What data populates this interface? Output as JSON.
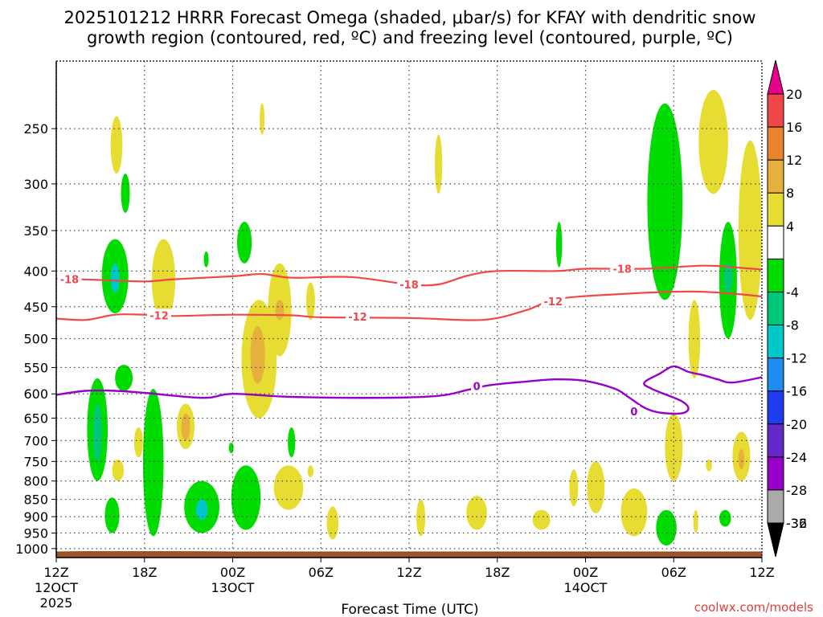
{
  "chart_data": {
    "type": "time-height cross-section",
    "title_line1": "2025101212 HRRR Forecast Omega (shaded, μbar/s) for KFAY with dendritic snow",
    "title_line2": "growth region (contoured, red, ºC) and freezing level (contoured, purple, ºC)",
    "xlabel": "Forecast Time (UTC)",
    "credit": "coolwx.com/models",
    "x_range_hours": [
      0,
      48
    ],
    "x_ticks": [
      {
        "h": 0,
        "label": "12Z",
        "sub1": "12OCT",
        "sub2": "2025"
      },
      {
        "h": 6,
        "label": "18Z",
        "sub1": "",
        "sub2": ""
      },
      {
        "h": 12,
        "label": "00Z",
        "sub1": "13OCT",
        "sub2": ""
      },
      {
        "h": 18,
        "label": "06Z",
        "sub1": "",
        "sub2": ""
      },
      {
        "h": 24,
        "label": "12Z",
        "sub1": "",
        "sub2": ""
      },
      {
        "h": 30,
        "label": "18Z",
        "sub1": "",
        "sub2": ""
      },
      {
        "h": 36,
        "label": "00Z",
        "sub1": "14OCT",
        "sub2": ""
      },
      {
        "h": 42,
        "label": "06Z",
        "sub1": "",
        "sub2": ""
      },
      {
        "h": 48,
        "label": "12Z",
        "sub1": "",
        "sub2": ""
      }
    ],
    "y_axis": "pressure (hPa), log scale",
    "y_range_hpa": [
      200,
      1030
    ],
    "y_ticks": [
      250,
      300,
      350,
      400,
      450,
      500,
      550,
      600,
      650,
      700,
      750,
      800,
      850,
      900,
      950,
      1000
    ],
    "surface_pressure_hpa": [
      [
        0,
        1011
      ],
      [
        2,
        1010
      ],
      [
        8,
        1010
      ],
      [
        12,
        1011
      ],
      [
        24,
        1011
      ],
      [
        36,
        1011
      ],
      [
        48,
        1011
      ]
    ],
    "dendritic_contours": [
      {
        "label": "-18",
        "color": "#f04848",
        "points": [
          [
            0,
            410
          ],
          [
            3,
            412
          ],
          [
            6,
            414
          ],
          [
            8,
            411
          ],
          [
            12,
            407
          ],
          [
            14,
            404
          ],
          [
            16,
            409
          ],
          [
            20,
            408
          ],
          [
            24,
            418
          ],
          [
            26,
            418
          ],
          [
            28,
            406
          ],
          [
            30,
            400
          ],
          [
            34,
            400
          ],
          [
            36,
            397
          ],
          [
            40,
            397
          ],
          [
            44,
            393
          ],
          [
            46,
            395
          ],
          [
            48,
            398
          ]
        ]
      },
      {
        "label": "-12",
        "color": "#f04848",
        "points": [
          [
            0,
            468
          ],
          [
            2,
            470
          ],
          [
            4,
            462
          ],
          [
            6,
            462
          ],
          [
            8,
            464
          ],
          [
            12,
            462
          ],
          [
            16,
            463
          ],
          [
            18,
            466
          ],
          [
            24,
            467
          ],
          [
            29,
            470
          ],
          [
            32,
            455
          ],
          [
            34,
            439
          ],
          [
            38,
            432
          ],
          [
            43,
            428
          ],
          [
            46,
            431
          ],
          [
            48,
            435
          ]
        ]
      }
    ],
    "freezing_level": {
      "label": "0",
      "color": "#9600c8",
      "points": [
        [
          0,
          602
        ],
        [
          2,
          594
        ],
        [
          4,
          594
        ],
        [
          6,
          598
        ],
        [
          10,
          608
        ],
        [
          12,
          600
        ],
        [
          16,
          606
        ],
        [
          22,
          608
        ],
        [
          26,
          604
        ],
        [
          28,
          592
        ],
        [
          29.5,
          583
        ],
        [
          32,
          576
        ],
        [
          34,
          572
        ],
        [
          36,
          575
        ],
        [
          38,
          590
        ],
        [
          39,
          608
        ],
        [
          40,
          628
        ],
        [
          41,
          638
        ],
        [
          42.5,
          640
        ],
        [
          43,
          630
        ],
        [
          42.5,
          614
        ],
        [
          40.5,
          590
        ],
        [
          40,
          578
        ],
        [
          41,
          562
        ],
        [
          42,
          548
        ],
        [
          43,
          558
        ],
        [
          44,
          564
        ],
        [
          45,
          572
        ],
        [
          46,
          578
        ],
        [
          48,
          568
        ]
      ]
    },
    "colorbar": [
      {
        "label": "20",
        "color": "#e8008c"
      },
      {
        "label": "16",
        "color": "#f04848"
      },
      {
        "label": "12",
        "color": "#e8842c"
      },
      {
        "label": "8",
        "color": "#e6b03c"
      },
      {
        "label": "4",
        "color": "#e6dc32"
      },
      {
        "label": "",
        "color": "#ffffff"
      },
      {
        "label": "-4",
        "color": "#00dc00"
      },
      {
        "label": "-8",
        "color": "#00c878"
      },
      {
        "label": "-12",
        "color": "#00c8c8"
      },
      {
        "label": "-16",
        "color": "#1e8cf0"
      },
      {
        "label": "-20",
        "color": "#1e3cf0"
      },
      {
        "label": "-24",
        "color": "#6428c8"
      },
      {
        "label": "-28",
        "color": "#9600c8"
      },
      {
        "label": "-32",
        "color": "#aaaaaa"
      },
      {
        "label": "-36",
        "color": "#000000"
      }
    ],
    "omega_regions": [
      {
        "sign": "ascent",
        "level": 1,
        "h_center": 4,
        "p_top": 360,
        "p_bottom": 460,
        "h_half": 0.9
      },
      {
        "sign": "ascent",
        "level": 3,
        "h_center": 4,
        "p_top": 390,
        "p_bottom": 430,
        "h_half": 0.3
      },
      {
        "sign": "ascent",
        "level": 1,
        "h_center": 4.7,
        "p_top": 290,
        "p_bottom": 330,
        "h_half": 0.3
      },
      {
        "sign": "ascent",
        "level": 1,
        "h_center": 12.8,
        "p_top": 340,
        "p_bottom": 390,
        "h_half": 0.5
      },
      {
        "sign": "ascent",
        "level": 1,
        "h_center": 10.2,
        "p_top": 375,
        "p_bottom": 395,
        "h_half": 0.1
      },
      {
        "sign": "ascent",
        "level": 1,
        "h_center": 2.8,
        "p_top": 570,
        "p_bottom": 800,
        "h_half": 0.7
      },
      {
        "sign": "ascent",
        "level": 2,
        "h_center": 2.8,
        "p_top": 620,
        "p_bottom": 750,
        "h_half": 0.3
      },
      {
        "sign": "ascent",
        "level": 1,
        "h_center": 4.6,
        "p_top": 545,
        "p_bottom": 595,
        "h_half": 0.6
      },
      {
        "sign": "ascent",
        "level": 1,
        "h_center": 3.8,
        "p_top": 845,
        "p_bottom": 950,
        "h_half": 0.5
      },
      {
        "sign": "ascent",
        "level": 1,
        "h_center": 6.6,
        "p_top": 590,
        "p_bottom": 960,
        "h_half": 0.7
      },
      {
        "sign": "ascent",
        "level": 1,
        "h_center": 9.9,
        "p_top": 800,
        "p_bottom": 950,
        "h_half": 1.2
      },
      {
        "sign": "ascent",
        "level": 3,
        "h_center": 9.9,
        "p_top": 850,
        "p_bottom": 910,
        "h_half": 0.4
      },
      {
        "sign": "ascent",
        "level": 1,
        "h_center": 12.9,
        "p_top": 760,
        "p_bottom": 940,
        "h_half": 1.0
      },
      {
        "sign": "ascent",
        "level": 1,
        "h_center": 16.0,
        "p_top": 670,
        "p_bottom": 740,
        "h_half": 0.25
      },
      {
        "sign": "ascent",
        "level": 1,
        "h_center": 11.9,
        "p_top": 705,
        "p_bottom": 730,
        "h_half": 0.15
      },
      {
        "sign": "ascent",
        "level": 1,
        "h_center": 34.2,
        "p_top": 340,
        "p_bottom": 395,
        "h_half": 0.2
      },
      {
        "sign": "ascent",
        "level": 1,
        "h_center": 41.4,
        "p_top": 230,
        "p_bottom": 440,
        "h_half": 1.2
      },
      {
        "sign": "ascent",
        "level": 1,
        "h_center": 45.7,
        "p_top": 340,
        "p_bottom": 500,
        "h_half": 0.6
      },
      {
        "sign": "ascent",
        "level": 2,
        "h_center": 45.7,
        "p_top": 390,
        "p_bottom": 430,
        "h_half": 0.3
      },
      {
        "sign": "ascent",
        "level": 1,
        "h_center": 41.5,
        "p_top": 880,
        "p_bottom": 990,
        "h_half": 0.7
      },
      {
        "sign": "ascent",
        "level": 1,
        "h_center": 45.5,
        "p_top": 880,
        "p_bottom": 930,
        "h_half": 0.4
      },
      {
        "sign": "descent",
        "level": 1,
        "h_center": 4.1,
        "p_top": 240,
        "p_bottom": 290,
        "h_half": 0.4
      },
      {
        "sign": "descent",
        "level": 1,
        "h_center": 14.0,
        "p_top": 230,
        "p_bottom": 255,
        "h_half": 0.15
      },
      {
        "sign": "descent",
        "level": 1,
        "h_center": 26.0,
        "p_top": 255,
        "p_bottom": 310,
        "h_half": 0.25
      },
      {
        "sign": "descent",
        "level": 1,
        "h_center": 7.3,
        "p_top": 360,
        "p_bottom": 470,
        "h_half": 0.8
      },
      {
        "sign": "descent",
        "level": 1,
        "h_center": 13.8,
        "p_top": 440,
        "p_bottom": 650,
        "h_half": 1.2
      },
      {
        "sign": "descent",
        "level": 2,
        "h_center": 13.7,
        "p_top": 480,
        "p_bottom": 580,
        "h_half": 0.5
      },
      {
        "sign": "descent",
        "level": 1,
        "h_center": 15.2,
        "p_top": 390,
        "p_bottom": 530,
        "h_half": 0.8
      },
      {
        "sign": "descent",
        "level": 2,
        "h_center": 15.2,
        "p_top": 440,
        "p_bottom": 470,
        "h_half": 0.3
      },
      {
        "sign": "descent",
        "level": 1,
        "h_center": 17.3,
        "p_top": 415,
        "p_bottom": 470,
        "h_half": 0.3
      },
      {
        "sign": "descent",
        "level": 1,
        "h_center": 8.8,
        "p_top": 620,
        "p_bottom": 720,
        "h_half": 0.6
      },
      {
        "sign": "descent",
        "level": 2,
        "h_center": 8.8,
        "p_top": 640,
        "p_bottom": 700,
        "h_half": 0.3
      },
      {
        "sign": "descent",
        "level": 1,
        "h_center": 5.6,
        "p_top": 670,
        "p_bottom": 740,
        "h_half": 0.3
      },
      {
        "sign": "descent",
        "level": 1,
        "h_center": 4.2,
        "p_top": 745,
        "p_bottom": 800,
        "h_half": 0.4
      },
      {
        "sign": "descent",
        "level": 1,
        "h_center": 15.8,
        "p_top": 760,
        "p_bottom": 880,
        "h_half": 1.0
      },
      {
        "sign": "descent",
        "level": 1,
        "h_center": 17.3,
        "p_top": 760,
        "p_bottom": 790,
        "h_half": 0.2
      },
      {
        "sign": "descent",
        "level": 1,
        "h_center": 18.8,
        "p_top": 870,
        "p_bottom": 970,
        "h_half": 0.4
      },
      {
        "sign": "descent",
        "level": 1,
        "h_center": 24.8,
        "p_top": 850,
        "p_bottom": 960,
        "h_half": 0.3
      },
      {
        "sign": "descent",
        "level": 1,
        "h_center": 28.6,
        "p_top": 840,
        "p_bottom": 940,
        "h_half": 0.7
      },
      {
        "sign": "descent",
        "level": 1,
        "h_center": 33.0,
        "p_top": 880,
        "p_bottom": 940,
        "h_half": 0.6
      },
      {
        "sign": "descent",
        "level": 1,
        "h_center": 35.2,
        "p_top": 770,
        "p_bottom": 870,
        "h_half": 0.3
      },
      {
        "sign": "descent",
        "level": 1,
        "h_center": 36.7,
        "p_top": 750,
        "p_bottom": 890,
        "h_half": 0.6
      },
      {
        "sign": "descent",
        "level": 1,
        "h_center": 39.3,
        "p_top": 820,
        "p_bottom": 960,
        "h_half": 0.9
      },
      {
        "sign": "descent",
        "level": 1,
        "h_center": 42.0,
        "p_top": 640,
        "p_bottom": 800,
        "h_half": 0.6
      },
      {
        "sign": "descent",
        "level": 1,
        "h_center": 43.4,
        "p_top": 440,
        "p_bottom": 570,
        "h_half": 0.4
      },
      {
        "sign": "descent",
        "level": 1,
        "h_center": 44.7,
        "p_top": 220,
        "p_bottom": 310,
        "h_half": 1.0
      },
      {
        "sign": "descent",
        "level": 1,
        "h_center": 47.2,
        "p_top": 260,
        "p_bottom": 470,
        "h_half": 0.8
      },
      {
        "sign": "descent",
        "level": 1,
        "h_center": 46.6,
        "p_top": 680,
        "p_bottom": 800,
        "h_half": 0.6
      },
      {
        "sign": "descent",
        "level": 2,
        "h_center": 46.6,
        "p_top": 720,
        "p_bottom": 770,
        "h_half": 0.2
      },
      {
        "sign": "descent",
        "level": 1,
        "h_center": 43.5,
        "p_top": 880,
        "p_bottom": 950,
        "h_half": 0.15
      },
      {
        "sign": "descent",
        "level": 1,
        "h_center": 44.4,
        "p_top": 745,
        "p_bottom": 775,
        "h_half": 0.2
      }
    ]
  }
}
